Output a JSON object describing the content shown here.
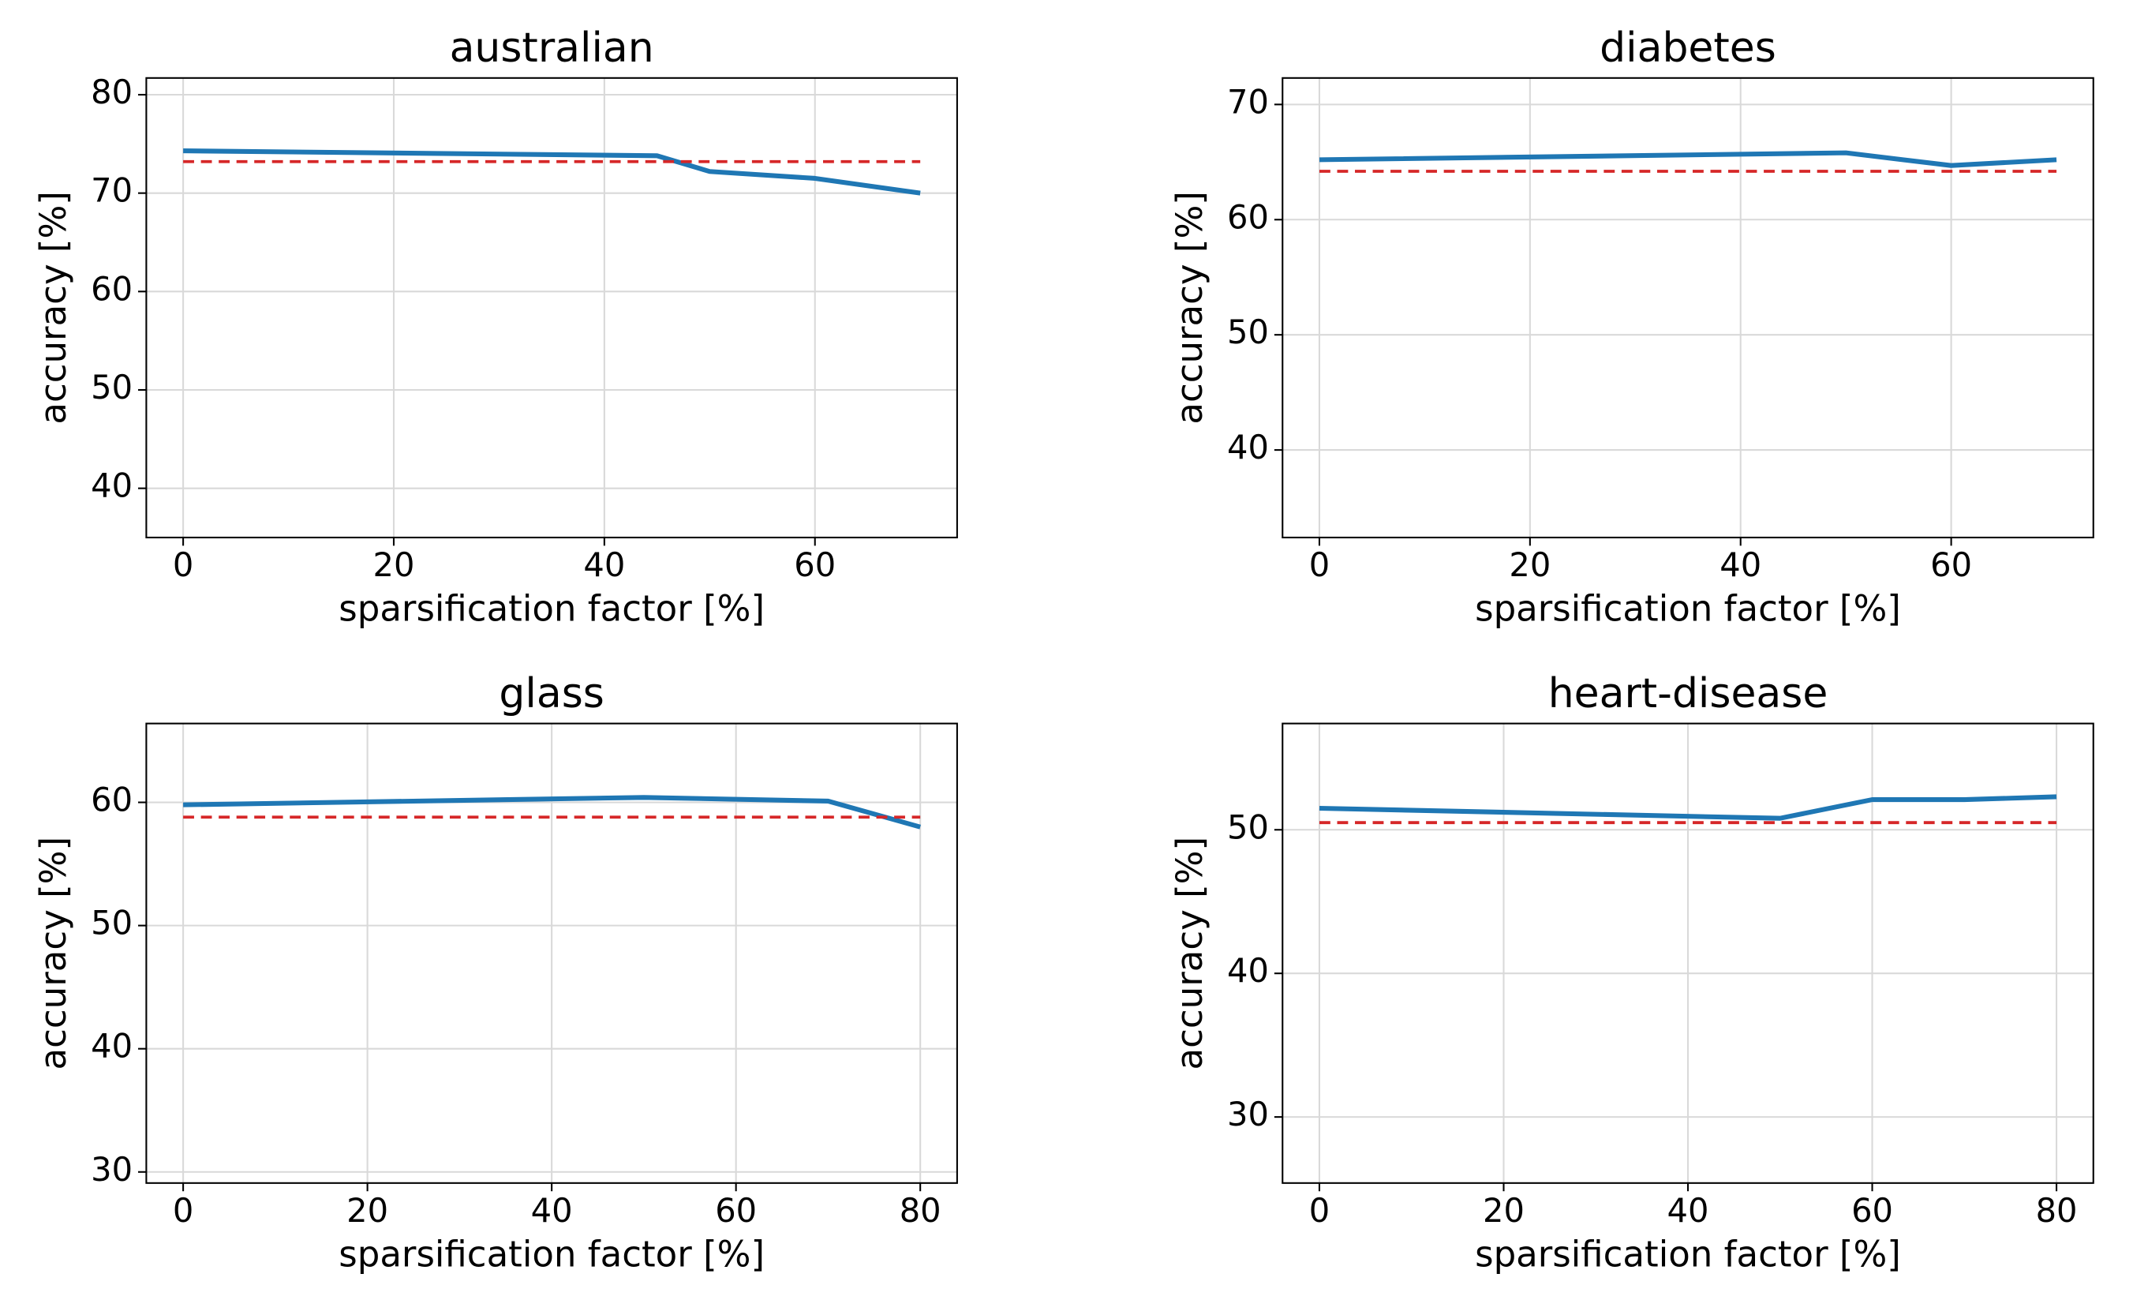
{
  "chart_data": [
    {
      "type": "line",
      "title": "australian",
      "xlabel": "sparsification factor [%]",
      "ylabel": "accuracy [%]",
      "xlim": [
        -3.5,
        73.5
      ],
      "xticks": [
        0,
        20,
        40,
        60
      ],
      "ylim": [
        35,
        81.7
      ],
      "yticks": [
        40,
        50,
        60,
        70,
        80
      ],
      "grid": true,
      "series": [
        {
          "color": "#1f77b4",
          "linestyle": "solid",
          "x": [
            0,
            45,
            50,
            60,
            70
          ],
          "values": [
            74.3,
            73.8,
            72.2,
            71.5,
            70.0
          ]
        },
        {
          "color": "#d62728",
          "linestyle": "dashed",
          "x": [
            0,
            70
          ],
          "values": [
            73.2,
            73.2
          ]
        }
      ]
    },
    {
      "type": "line",
      "title": "diabetes",
      "xlabel": "sparsification factor [%]",
      "ylabel": "accuracy [%]",
      "xlim": [
        -3.5,
        73.5
      ],
      "xticks": [
        0,
        20,
        40,
        60
      ],
      "ylim": [
        32.4,
        72.3
      ],
      "yticks": [
        40,
        50,
        60,
        70
      ],
      "grid": true,
      "series": [
        {
          "color": "#1f77b4",
          "linestyle": "solid",
          "x": [
            0,
            50,
            60,
            70
          ],
          "values": [
            65.2,
            65.8,
            64.7,
            65.2
          ]
        },
        {
          "color": "#d62728",
          "linestyle": "dashed",
          "x": [
            0,
            70
          ],
          "values": [
            64.2,
            64.2
          ]
        }
      ]
    },
    {
      "type": "line",
      "title": "glass",
      "xlabel": "sparsification factor [%]",
      "ylabel": "accuracy [%]",
      "xlim": [
        -4,
        84
      ],
      "xticks": [
        0,
        20,
        40,
        60,
        80
      ],
      "ylim": [
        29.1,
        66.4
      ],
      "yticks": [
        30,
        40,
        50,
        60
      ],
      "grid": true,
      "series": [
        {
          "color": "#1f77b4",
          "linestyle": "solid",
          "x": [
            0,
            50,
            70,
            80
          ],
          "values": [
            59.8,
            60.4,
            60.1,
            58.0
          ]
        },
        {
          "color": "#d62728",
          "linestyle": "dashed",
          "x": [
            0,
            80
          ],
          "values": [
            58.8,
            58.8
          ]
        }
      ]
    },
    {
      "type": "line",
      "title": "heart-disease",
      "xlabel": "sparsification factor [%]",
      "ylabel": "accuracy [%]",
      "xlim": [
        -4,
        84
      ],
      "xticks": [
        0,
        20,
        40,
        60,
        80
      ],
      "ylim": [
        25.4,
        57.4
      ],
      "yticks": [
        30,
        40,
        50
      ],
      "grid": true,
      "series": [
        {
          "color": "#1f77b4",
          "linestyle": "solid",
          "x": [
            0,
            50,
            60,
            70,
            80
          ],
          "values": [
            51.5,
            50.8,
            52.1,
            52.1,
            52.3
          ]
        },
        {
          "color": "#d62728",
          "linestyle": "dashed",
          "x": [
            0,
            80
          ],
          "values": [
            50.5,
            50.5
          ]
        }
      ]
    }
  ]
}
